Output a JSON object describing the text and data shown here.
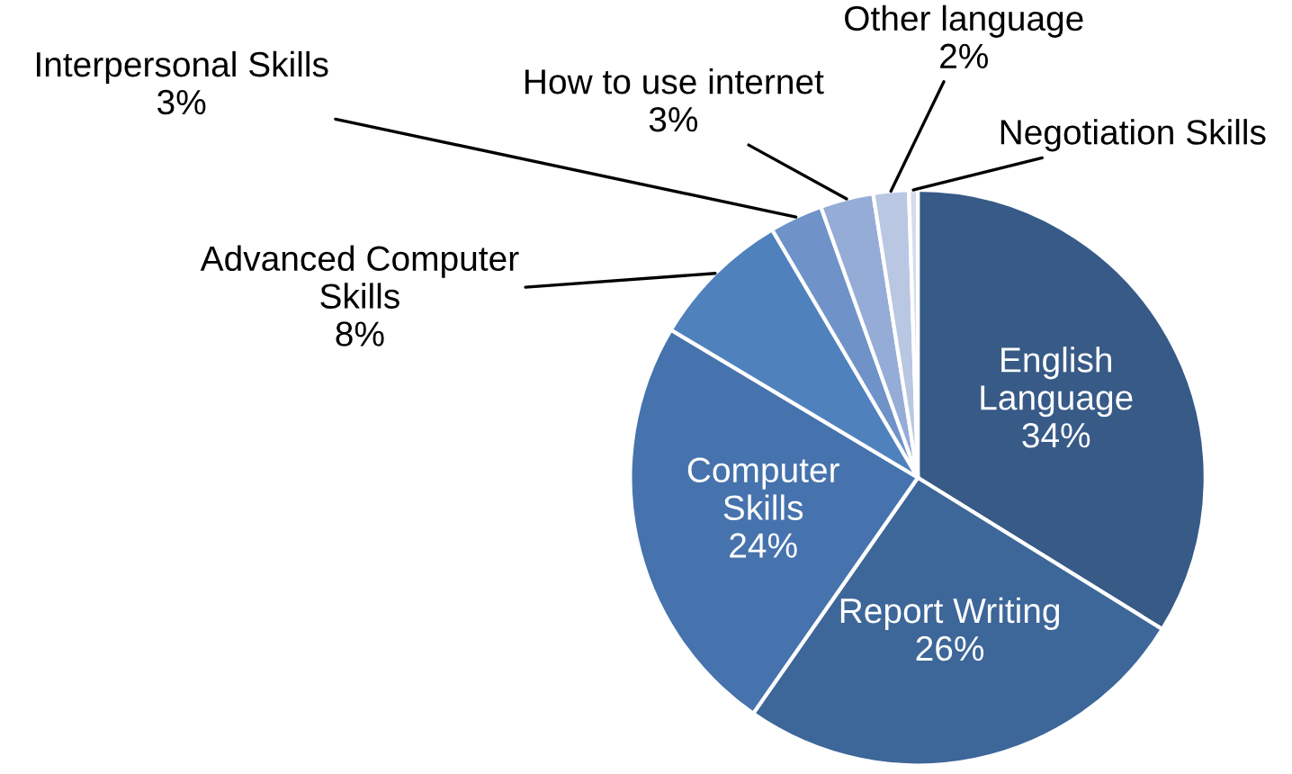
{
  "chart_data": {
    "type": "pie",
    "categories": [
      "English\nLanguage",
      "Report Writing",
      "Computer\nSkills",
      "Advanced Computer\nSkills",
      "Interpersonal Skills",
      "How to use internet",
      "Other language",
      "Negotiation Skills"
    ],
    "values": [
      34,
      26,
      24,
      8,
      3,
      3,
      2,
      0.5
    ],
    "value_labels": [
      "34%",
      "26%",
      "24%",
      "8%",
      "3%",
      "3%",
      "2%",
      null
    ],
    "colors": [
      "#375a87",
      "#3d6699",
      "#4673ad",
      "#4f81bd",
      "#6f93c8",
      "#95acd6",
      "#b9c7e3",
      "#d5dcec"
    ],
    "legend": false
  }
}
